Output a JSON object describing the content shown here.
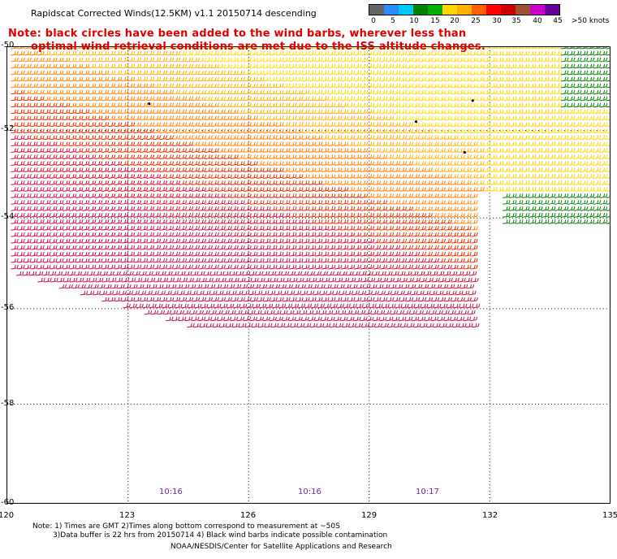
{
  "title": "Rapidscat Corrected Winds(12.5KM) v1.1 20150714 descending",
  "note": {
    "line1": "Note: black circles have been added to the wind barbs, wherever less than",
    "line2": "optimal wind retrieval conditions are met due to the ISS altitude changes."
  },
  "legend": {
    "ticks": [
      "0",
      "5",
      "10",
      "15",
      "20",
      "25",
      "30",
      "35",
      "40",
      "45",
      ">50 knots"
    ],
    "colors": [
      "#666666",
      "#2a8cff",
      "#00c8ff",
      "#008000",
      "#00b000",
      "#ffd400",
      "#ffb000",
      "#ff6000",
      "#ff0000",
      "#cc0000",
      "#a0522d",
      "#cc00cc",
      "#660099"
    ]
  },
  "axes": {
    "lat_labels": [
      "-50",
      "-52",
      "-54",
      "-56",
      "-58",
      "-60"
    ],
    "lon_labels": [
      "120",
      "123",
      "126",
      "129",
      "132",
      "135"
    ]
  },
  "times": [
    "10:16",
    "10:16",
    "10:17"
  ],
  "footer": {
    "line1": "Note: 1) Times are GMT 2)Times along bottom correspond to measurement at ~50S",
    "line2": "3)Data buffer is 22 hrs from 20150714 4) Black wind barbs indicate possible contamination",
    "line3": "NOAA/NESDIS/Center for Satellite Applications and Research"
  }
}
